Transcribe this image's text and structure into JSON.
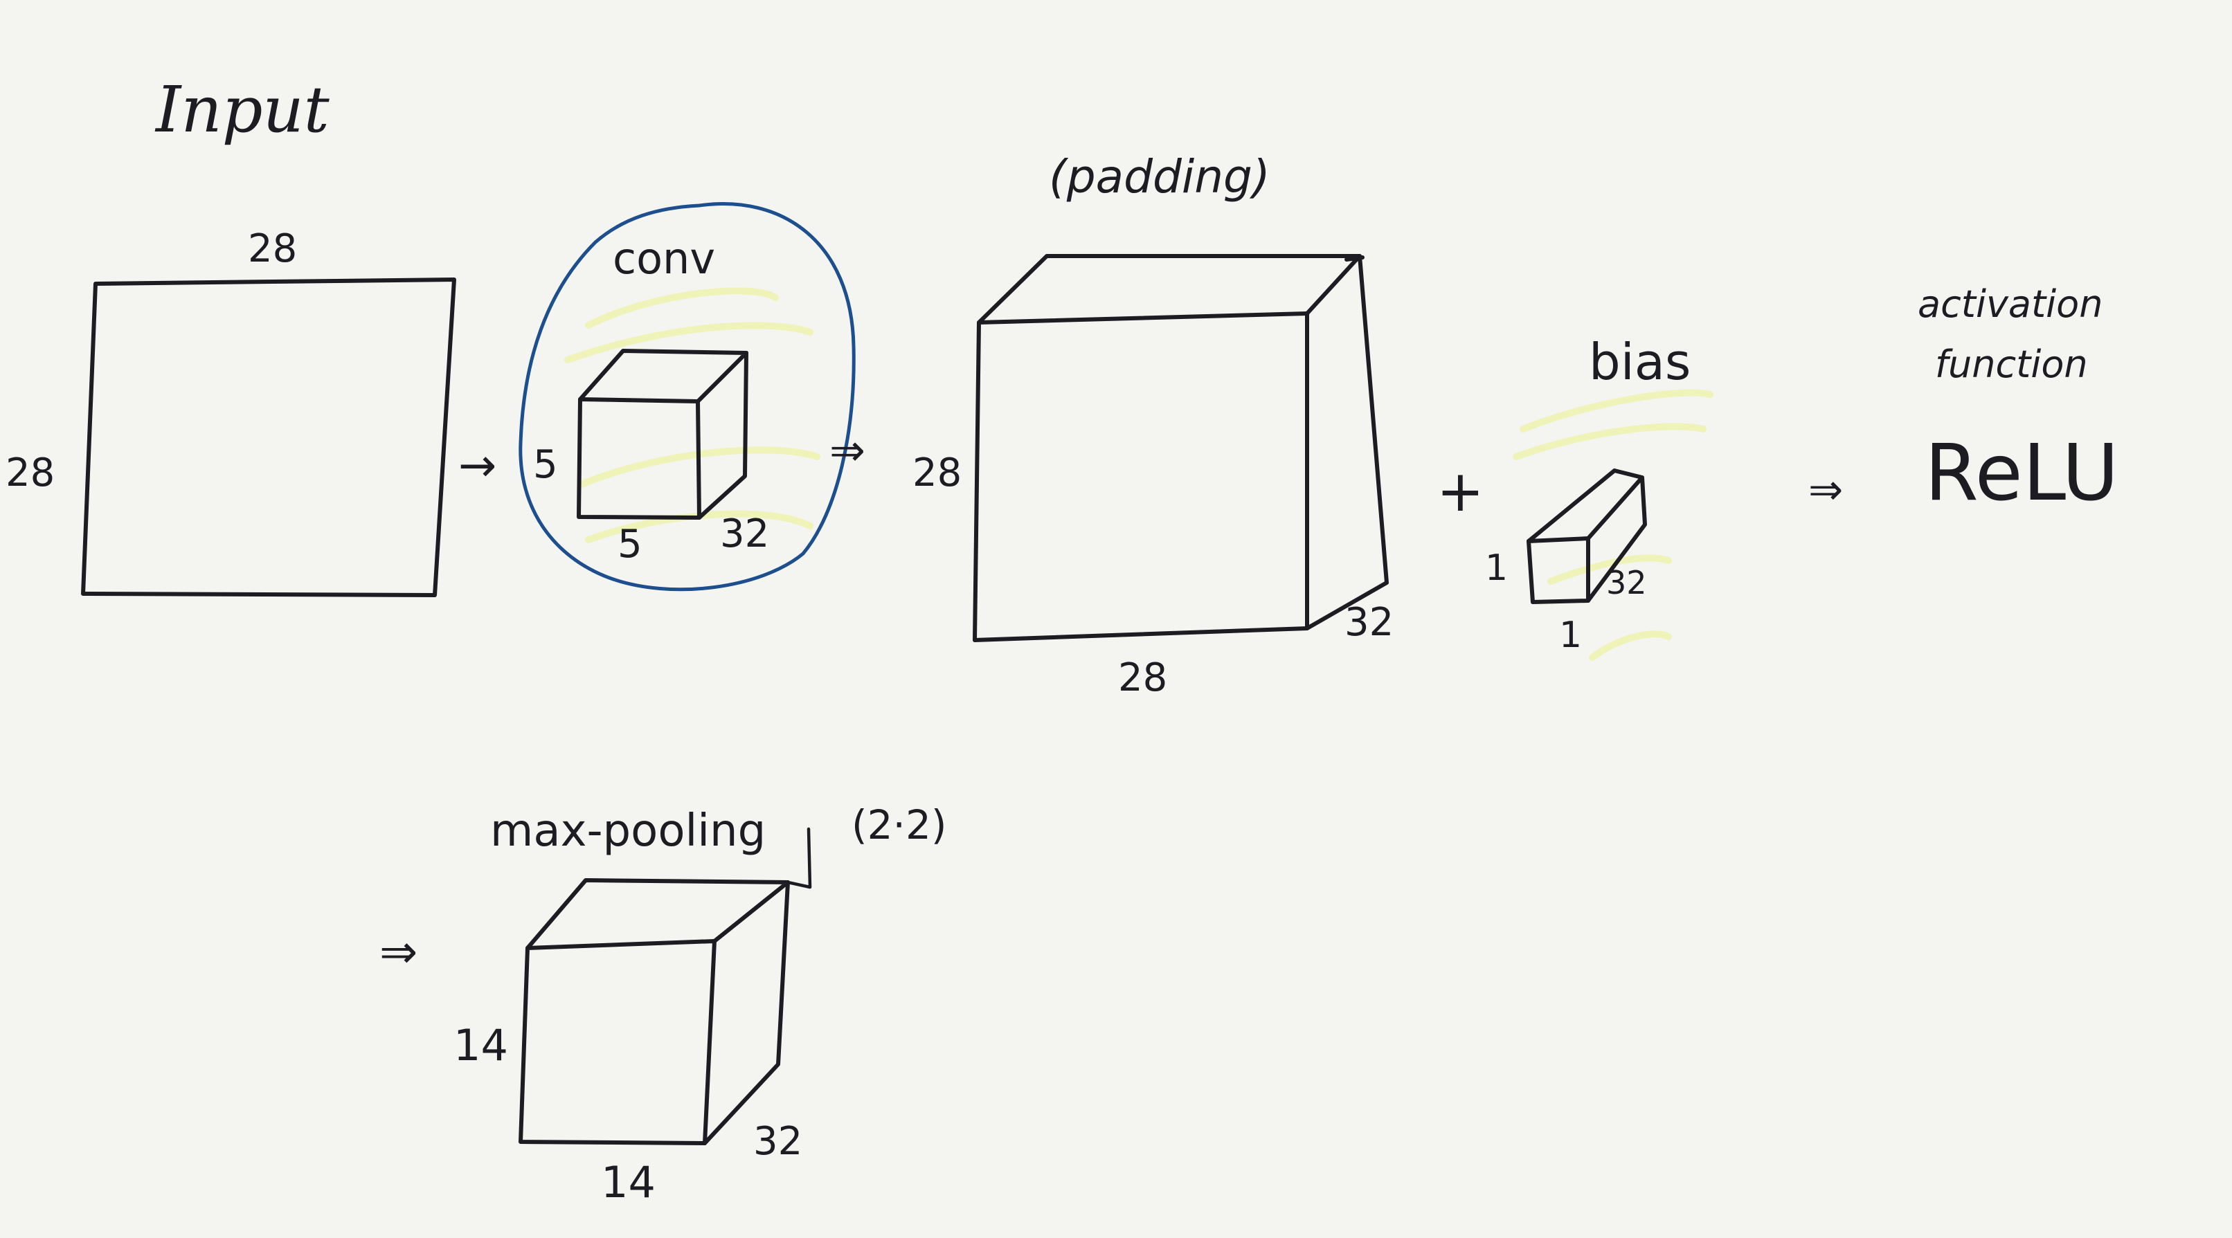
{
  "labels": {
    "input_title": "Input",
    "input_width": "28",
    "input_height": "28",
    "conv_title": "conv",
    "kernel_height": "5",
    "kernel_width": "5",
    "kernel_depth": "32",
    "padding_note": "(padding)",
    "fmap_height": "28",
    "fmap_width": "28",
    "fmap_depth": "32",
    "plus_sign": "+",
    "bias_title": "bias",
    "bias_height": "1",
    "bias_width": "1",
    "bias_depth": "32",
    "activation_line1": "activation",
    "activation_line2": "function",
    "relu": "ReLU",
    "pool_title": "max-pooling",
    "pool_size": "(2·2)",
    "pool_height": "14",
    "pool_width": "14",
    "pool_depth": "32"
  },
  "arrows": {
    "input_to_conv": "→",
    "conv_to_fmap": "⇒",
    "bias_to_relu": "⇒",
    "to_pool": "⇒"
  },
  "colors": {
    "paper": "#f4f5f1",
    "ink": "#1c1c22",
    "conv_circle": "#1d4e8e",
    "highlighter": "#eef2a4"
  }
}
